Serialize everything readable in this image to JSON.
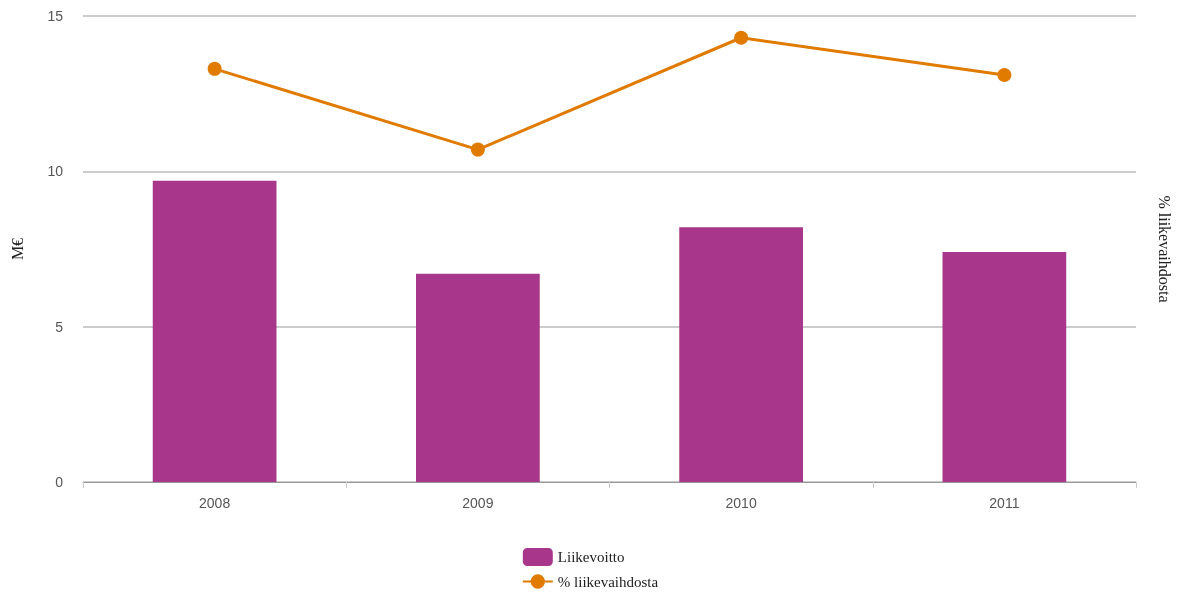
{
  "chart_data": {
    "type": "bar",
    "ylabel": "M€",
    "y2label": "% liikevaihdosta",
    "categories": [
      "2008",
      "2009",
      "2010",
      "2011"
    ],
    "series": [
      {
        "name": "Liikevoitto",
        "color": "#a8378b",
        "values": [
          9.7,
          6.7,
          8.2,
          7.4
        ]
      },
      {
        "name": "% liikevaihdosta",
        "type": "line",
        "color": "#e07b00",
        "values": [
          13.3,
          10.7,
          14.3,
          13.1
        ]
      }
    ],
    "ylim": [
      0,
      15
    ],
    "yticks": [
      0,
      5,
      10,
      15
    ],
    "grid": "y",
    "legend": "bottom",
    "marker": "circle",
    "line_style": "solid"
  }
}
